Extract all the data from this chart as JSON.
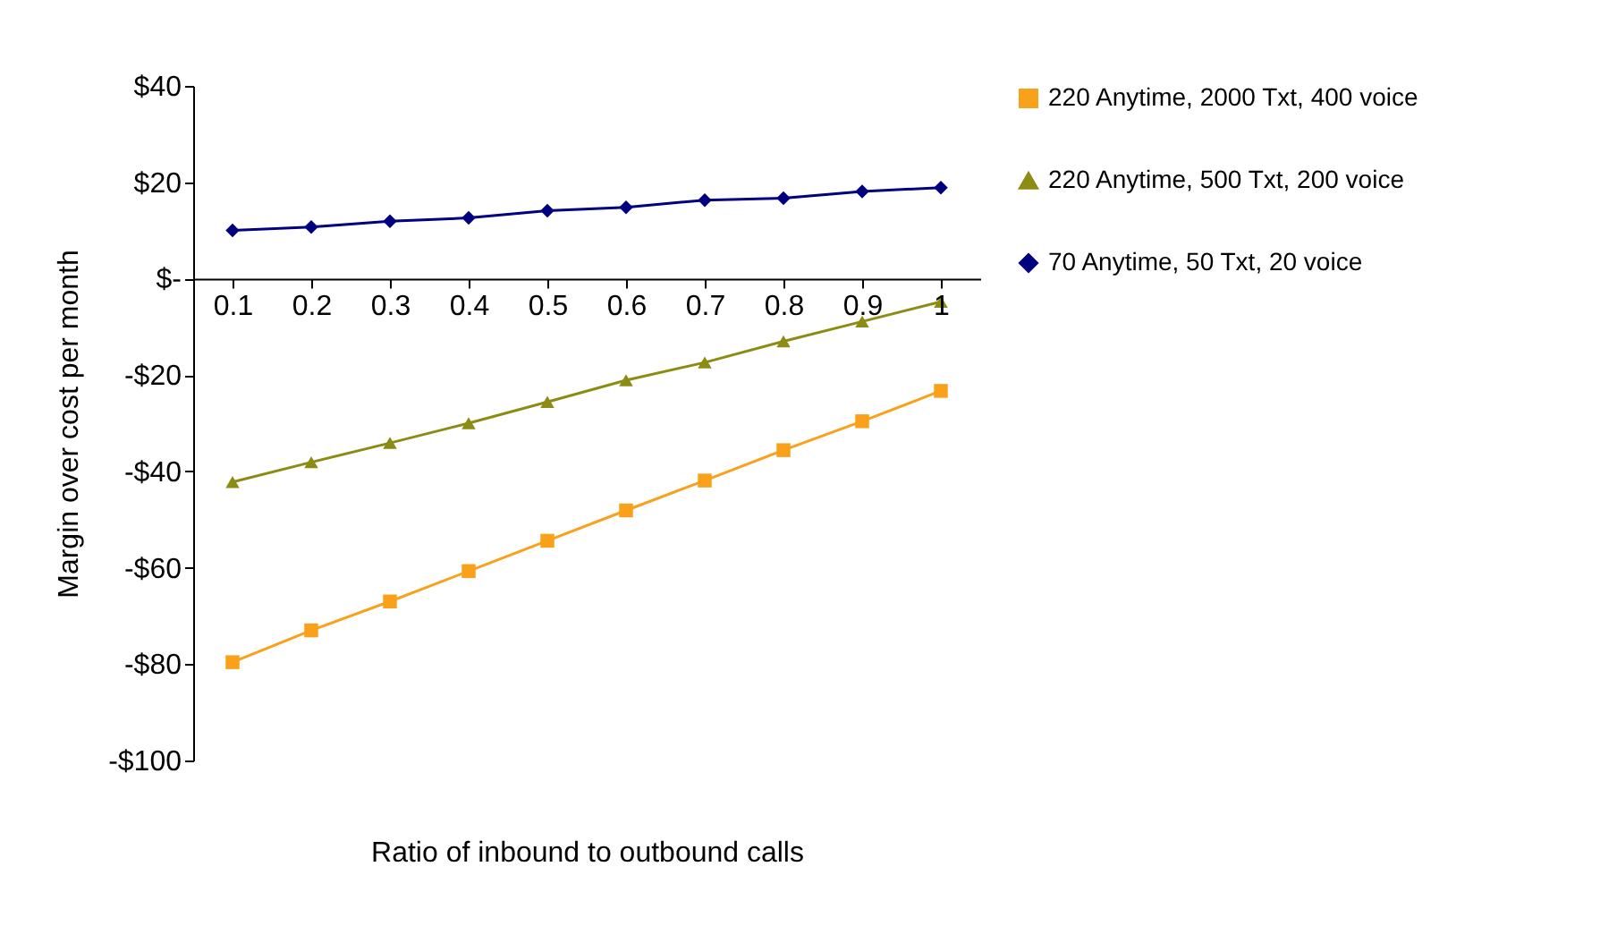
{
  "chart_data": {
    "type": "line",
    "xlabel": "Ratio of inbound to outbound calls",
    "ylabel": "Margin over cost per month",
    "categories": [
      "0.1",
      "0.2",
      "0.3",
      "0.4",
      "0.5",
      "0.6",
      "0.7",
      "0.8",
      "0.9",
      "1"
    ],
    "series": [
      {
        "name": "220 Anytime, 2000 Txt, 400 voice",
        "color": "#f9a11b",
        "marker": "square",
        "values": [
          -79.6,
          -73,
          -67,
          -60.7,
          -54.4,
          -48.1,
          -41.9,
          -35.6,
          -29.6,
          -23.3
        ]
      },
      {
        "name": "220 Anytime, 500 Txt, 200 voice",
        "color": "#8c8c14",
        "marker": "triangle",
        "values": [
          -42.2,
          -38.1,
          -34.1,
          -30,
          -25.6,
          -21.1,
          -17.4,
          -13,
          -8.9,
          -4.8
        ]
      },
      {
        "name": "70 Anytime, 50 Txt, 20 voice",
        "color": "#000080",
        "marker": "diamond",
        "values": [
          10,
          10.7,
          11.9,
          12.6,
          14.1,
          14.8,
          16.3,
          16.7,
          18.1,
          18.9
        ]
      }
    ],
    "ylim": [
      -100,
      40
    ],
    "yticks": [
      {
        "value": -100,
        "label": "-$100"
      },
      {
        "value": -80,
        "label": "-$80"
      },
      {
        "value": -60,
        "label": "-$60"
      },
      {
        "value": -40,
        "label": "-$40"
      },
      {
        "value": -20,
        "label": "-$20"
      },
      {
        "value": 0,
        "label": "$-"
      },
      {
        "value": 20,
        "label": "$20"
      },
      {
        "value": 40,
        "label": "$40"
      }
    ],
    "grid": false,
    "legend": "right",
    "line_style": "solid"
  }
}
